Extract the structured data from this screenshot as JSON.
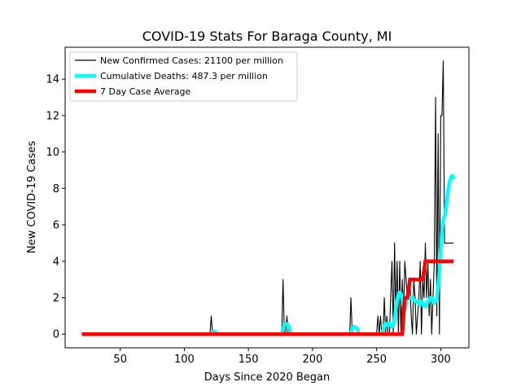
{
  "chart_data": {
    "type": "line",
    "title": "COVID-19 Stats For Baraga County, MI",
    "xlabel": "Days Since 2020 Began",
    "ylabel": "New COVID-19 Cases",
    "xlim": [
      7,
      322
    ],
    "ylim": [
      -0.75,
      15.75
    ],
    "xticks": [
      50,
      100,
      150,
      200,
      250,
      300
    ],
    "yticks": [
      0,
      2,
      4,
      6,
      8,
      10,
      12,
      14
    ],
    "grid": false,
    "legend_position": "top-left",
    "series": [
      {
        "name": "New Confirmed Cases: 21100 per million",
        "color": "#000000",
        "x": [
          20,
          120,
          121,
          122,
          176,
          177,
          178,
          179,
          180,
          181,
          228,
          229,
          230,
          231,
          232,
          250,
          251,
          252,
          253,
          254,
          255,
          256,
          257,
          258,
          259,
          260,
          261,
          262,
          263,
          264,
          265,
          266,
          267,
          268,
          269,
          270,
          271,
          272,
          273,
          274,
          275,
          276,
          277,
          278,
          279,
          280,
          281,
          282,
          283,
          284,
          285,
          286,
          287,
          288,
          289,
          290,
          291,
          292,
          293,
          294,
          295,
          296,
          297,
          298,
          299,
          300,
          301,
          302,
          303,
          304,
          305,
          306,
          307,
          308,
          309,
          310
        ],
        "y": [
          0,
          0,
          1,
          0,
          0,
          3,
          0,
          0,
          1,
          0,
          0,
          0,
          2,
          0,
          0,
          0,
          1,
          0,
          1,
          0,
          0,
          2,
          0,
          1,
          0,
          0,
          2,
          4,
          0,
          5,
          1,
          4,
          0,
          4,
          0,
          3,
          1,
          4,
          3,
          2,
          2,
          3,
          1,
          0,
          3,
          2,
          0,
          1,
          2,
          4,
          0,
          3,
          2,
          5,
          2,
          4,
          1,
          3,
          0,
          2,
          4,
          13,
          1,
          11,
          0,
          12,
          12,
          15,
          5,
          5,
          5,
          5,
          5,
          5,
          5,
          5
        ]
      },
      {
        "name": "Cumulative Deaths: 487.3 per million",
        "color": "#00ffff",
        "segments": [
          {
            "x": [
              121,
              122,
              123,
              124,
              125,
              126
            ],
            "y": [
              0,
              0.1,
              0.15,
              0.15,
              0.1,
              0
            ]
          },
          {
            "x": [
              176,
              177,
              178,
              179,
              180,
              181,
              182,
              183
            ],
            "y": [
              0,
              0.3,
              0.5,
              0.55,
              0.55,
              0.5,
              0.3,
              0
            ]
          },
          {
            "x": [
              230,
              231,
              232,
              233,
              234,
              235,
              236
            ],
            "y": [
              0,
              0.35,
              0.4,
              0.4,
              0.35,
              0.3,
              0
            ]
          },
          {
            "x": [
              254,
              255,
              256,
              257,
              258,
              259,
              260,
              261,
              262,
              263,
              264,
              265,
              266,
              267,
              268,
              269,
              270,
              271,
              272,
              273,
              274,
              275,
              276,
              277,
              278,
              279,
              280,
              281,
              282,
              283,
              284,
              285,
              286,
              287,
              288,
              289,
              290,
              291,
              292,
              293,
              294,
              295,
              296,
              297,
              298,
              299,
              300,
              301,
              302,
              303,
              304,
              305,
              306,
              307,
              308,
              309,
              310
            ],
            "y": [
              0,
              0.2,
              0.4,
              0.6,
              0.55,
              0.5,
              0.6,
              0.5,
              0.4,
              0.5,
              0.8,
              1.4,
              1.8,
              2.2,
              2.3,
              2.2,
              2.0,
              1.5,
              1.3,
              1.7,
              2.0,
              2.0,
              2.0,
              2.0,
              2.0,
              1.9,
              1.8,
              1.8,
              1.8,
              1.7,
              1.6,
              1.8,
              1.7,
              1.6,
              1.5,
              1.6,
              1.8,
              1.8,
              2.0,
              2.0,
              1.9,
              1.7,
              1.8,
              1.9,
              2.6,
              3.5,
              4.6,
              5.6,
              6.3,
              6.5,
              6.8,
              7.5,
              8.0,
              8.4,
              8.6,
              8.7,
              8.6
            ]
          }
        ]
      },
      {
        "name": "7 Day Case Average",
        "color": "#ff0000",
        "x": [
          20,
          270,
          272,
          274,
          276,
          278,
          280,
          282,
          284,
          286,
          288,
          290,
          292,
          294,
          296,
          298,
          300,
          302,
          304,
          306,
          308,
          310
        ],
        "y": [
          0,
          0,
          2,
          2,
          3,
          3,
          3,
          3,
          3,
          3,
          4,
          4,
          4,
          4,
          4,
          4,
          4,
          4,
          4,
          4,
          4,
          4
        ]
      }
    ]
  }
}
